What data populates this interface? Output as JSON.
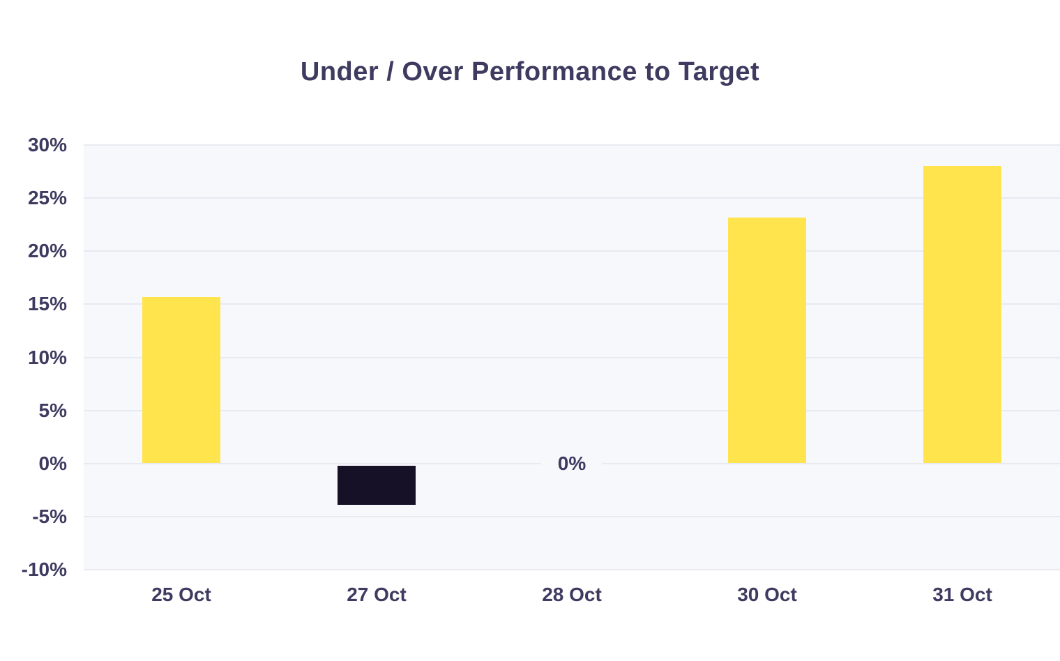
{
  "chart_data": {
    "type": "bar",
    "title": "Under / Over Performance to Target",
    "unit": "%",
    "categories": [
      "25 Oct",
      "27 Oct",
      "28 Oct",
      "30 Oct",
      "31 Oct"
    ],
    "values": [
      15.7,
      -3.9,
      0,
      23.2,
      28
    ],
    "yticks": [
      30,
      25,
      20,
      15,
      10,
      5,
      0,
      -5,
      -10
    ],
    "ytick_labels": [
      "30%",
      "25%",
      "20%",
      "15%",
      "10%",
      "5%",
      "0%",
      "-5%",
      "-10%"
    ],
    "ylim": [
      -10,
      30
    ],
    "zero_value_label": "0%",
    "xlabel": "",
    "ylabel": "",
    "grid": "horizontal",
    "legend": "none",
    "colors": {
      "positive_bar": "#ffe44e",
      "negative_bar": "#161126",
      "plot_background": "#f7f8fc",
      "gridline": "#e9e9f2",
      "text": "#3f3b60",
      "page_background": "#ffffff"
    }
  }
}
